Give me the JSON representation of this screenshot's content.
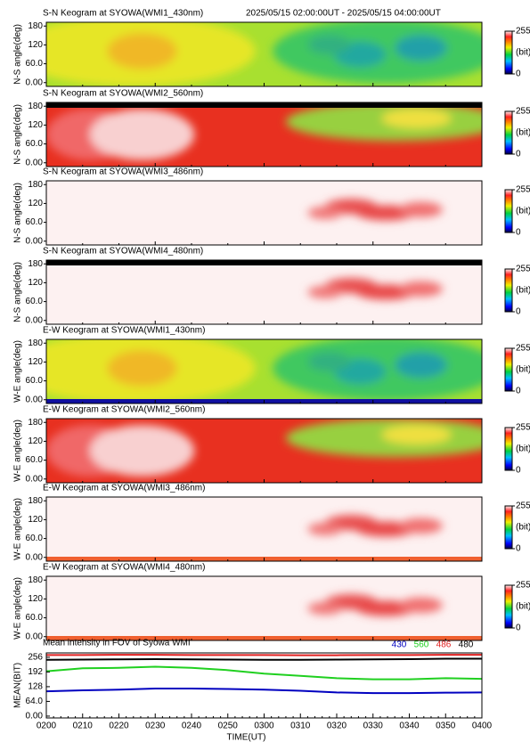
{
  "chart_data": [
    {
      "type": "keogram",
      "title": "S-N Keogram at SYOWA(WMI1_430nm)",
      "subtitle": "2025/05/15 02:00:00UT - 2025/05/15 04:00:00UT",
      "ylabel": "N-S angle(deg)",
      "ylim": [
        -12,
        192
      ],
      "yticks": [
        {
          "value": 0,
          "label": "0.00"
        },
        {
          "value": 60,
          "label": "60.0"
        },
        120,
        180
      ],
      "clim": [
        0,
        255
      ],
      "cticks": [
        0,
        255
      ],
      "clabel": "(bit)"
    },
    {
      "type": "keogram",
      "title": "S-N Keogram at SYOWA(WMI2_560nm)",
      "ylabel": "N-S angle(deg)",
      "ylim": [
        -12,
        192
      ],
      "yticks": [
        {
          "value": 0,
          "label": "0.00"
        },
        {
          "value": 60,
          "label": "60.0"
        },
        120,
        180
      ],
      "clim": [
        0,
        255
      ],
      "cticks": [
        0,
        255
      ],
      "clabel": "(bit)"
    },
    {
      "type": "keogram",
      "title": "S-N Keogram at SYOWA(WMI3_486nm)",
      "ylabel": "N-S angle(deg)",
      "ylim": [
        -12,
        192
      ],
      "yticks": [
        {
          "value": 0,
          "label": "0.00"
        },
        {
          "value": 60,
          "label": "60.0"
        },
        120,
        180
      ],
      "clim": [
        0,
        255
      ],
      "cticks": [
        0,
        255
      ],
      "clabel": "(bit)"
    },
    {
      "type": "keogram",
      "title": "S-N Keogram at SYOWA(WMI4_480nm)",
      "ylabel": "N-S angle(deg)",
      "ylim": [
        -12,
        192
      ],
      "yticks": [
        {
          "value": 0,
          "label": "0.00"
        },
        {
          "value": 60,
          "label": "60.0"
        },
        120,
        180
      ],
      "clim": [
        0,
        255
      ],
      "cticks": [
        0,
        255
      ],
      "clabel": "(bit)"
    },
    {
      "type": "keogram",
      "title": "E-W Keogram at SYOWA(WMI1_430nm)",
      "ylabel": "W-E angle(deg)",
      "ylim": [
        -12,
        192
      ],
      "yticks": [
        {
          "value": 0,
          "label": "0.00"
        },
        {
          "value": 60,
          "label": "60.0"
        },
        120,
        180
      ],
      "clim": [
        0,
        255
      ],
      "cticks": [
        0,
        255
      ],
      "clabel": "(bit)"
    },
    {
      "type": "keogram",
      "title": "E-W Keogram at SYOWA(WMI2_560nm)",
      "ylabel": "W-E angle(deg)",
      "ylim": [
        -12,
        192
      ],
      "yticks": [
        {
          "value": 0,
          "label": "0.00"
        },
        {
          "value": 60,
          "label": "60.0"
        },
        120,
        180
      ],
      "clim": [
        0,
        255
      ],
      "cticks": [
        0,
        255
      ],
      "clabel": "(bit)"
    },
    {
      "type": "keogram",
      "title": "E-W Keogram at SYOWA(WMI3_486nm)",
      "ylabel": "W-E angle(deg)",
      "ylim": [
        -12,
        192
      ],
      "yticks": [
        {
          "value": 0,
          "label": "0.00"
        },
        {
          "value": 60,
          "label": "60.0"
        },
        120,
        180
      ],
      "clim": [
        0,
        255
      ],
      "cticks": [
        0,
        255
      ],
      "clabel": "(bit)"
    },
    {
      "type": "keogram",
      "title": "E-W Keogram at SYOWA(WMI4_480nm)",
      "ylabel": "W-E angle(deg)",
      "ylim": [
        -12,
        192
      ],
      "yticks": [
        {
          "value": 0,
          "label": "0.00"
        },
        {
          "value": 60,
          "label": "60.0"
        },
        120,
        180
      ],
      "clim": [
        0,
        255
      ],
      "cticks": [
        0,
        255
      ],
      "clabel": "(bit)"
    },
    {
      "type": "line",
      "title": "Mean intensity in FOV of Syowa WMI",
      "xlabel": "TIME(UT)",
      "ylabel": "MEAN(BIT)",
      "x": [
        "0200",
        "0210",
        "0220",
        "0230",
        "0240",
        "0250",
        "0300",
        "0310",
        "0320",
        "0330",
        "0340",
        "0350",
        "0400"
      ],
      "ylim": [
        -8,
        275
      ],
      "yticks": [
        {
          "value": 0,
          "label": "0.00"
        },
        {
          "value": 64,
          "label": "64.0"
        },
        128,
        192,
        256
      ],
      "series": [
        {
          "name": "430",
          "color": "#0000c0",
          "values": [
            108,
            112,
            115,
            120,
            120,
            118,
            115,
            110,
            103,
            100,
            100,
            102,
            103
          ]
        },
        {
          "name": "560",
          "color": "#20d020",
          "values": [
            195,
            208,
            210,
            215,
            210,
            200,
            185,
            175,
            165,
            160,
            160,
            165,
            162
          ]
        },
        {
          "name": "486",
          "color": "#e02020",
          "values": [
            266,
            266,
            267,
            267,
            266,
            266,
            266,
            265,
            265,
            266,
            266,
            267,
            267
          ]
        },
        {
          "name": "480",
          "color": "#000000",
          "values": [
            245,
            246,
            247,
            248,
            247,
            246,
            245,
            245,
            246,
            247,
            248,
            250,
            250
          ]
        }
      ]
    }
  ]
}
